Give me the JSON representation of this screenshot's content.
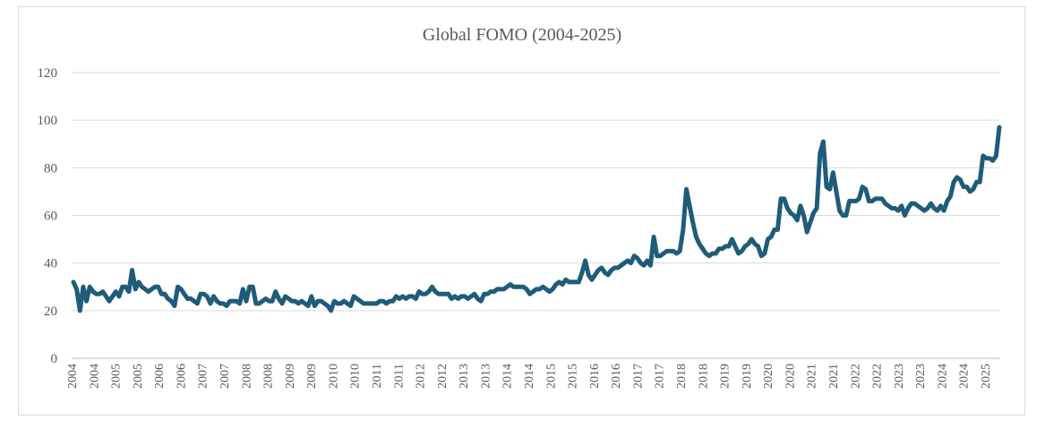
{
  "chart_data": {
    "type": "line",
    "title": "Global FOMO (2004-2025)",
    "xlabel": "",
    "ylabel": "",
    "ylim": [
      0,
      120
    ],
    "yticks": [
      "0",
      "20",
      "40",
      "60",
      "80",
      "100",
      "120"
    ],
    "xtick_labels": [
      "2004",
      "2004",
      "2005",
      "2005",
      "2006",
      "2006",
      "2007",
      "2007",
      "2008",
      "2008",
      "2009",
      "2009",
      "2010",
      "2010",
      "2011",
      "2011",
      "2012",
      "2012",
      "2013",
      "2013",
      "2014",
      "2014",
      "2015",
      "2015",
      "2016",
      "2016",
      "2017",
      "2017",
      "2018",
      "2018",
      "2019",
      "2019",
      "2020",
      "2020",
      "2021",
      "2021",
      "2022",
      "2022",
      "2023",
      "2023",
      "2024",
      "2024",
      "2025"
    ],
    "x_start": "2004-01",
    "grid": true,
    "legend": "none",
    "line_color": "#1f5c7a",
    "series": [
      {
        "values": [
          32,
          29,
          20,
          30,
          24,
          30,
          28,
          27,
          27,
          28,
          26,
          24,
          26,
          28,
          26,
          30,
          30,
          28,
          37,
          29,
          32,
          30,
          29,
          28,
          29,
          30,
          30,
          27,
          27,
          25,
          24,
          22,
          30,
          29,
          27,
          25,
          25,
          24,
          23,
          27,
          27,
          26,
          23,
          26,
          24,
          23,
          23,
          22,
          24,
          24,
          24,
          23,
          29,
          24,
          30,
          30,
          23,
          23,
          24,
          25,
          24,
          24,
          28,
          25,
          23,
          26,
          25,
          24,
          24,
          23,
          24,
          23,
          22,
          26,
          22,
          24,
          24,
          23,
          22,
          20,
          24,
          23,
          23,
          24,
          23,
          22,
          26,
          25,
          24,
          23,
          23,
          23,
          23,
          23,
          24,
          24,
          23,
          24,
          24,
          26,
          25,
          26,
          25,
          26,
          26,
          25,
          28,
          27,
          27,
          28,
          30,
          28,
          27,
          27,
          27,
          27,
          25,
          26,
          25,
          26,
          26,
          25,
          26,
          27,
          25,
          24,
          27,
          27,
          28,
          28,
          29,
          29,
          29,
          30,
          31,
          30,
          30,
          30,
          30,
          29,
          27,
          28,
          29,
          29,
          30,
          29,
          28,
          29,
          31,
          32,
          31,
          33,
          32,
          32,
          32,
          32,
          36,
          41,
          35,
          33,
          35,
          37,
          38,
          36,
          35,
          37,
          38,
          38,
          39,
          40,
          41,
          40,
          43,
          42,
          40,
          39,
          41,
          39,
          51,
          43,
          43,
          44,
          45,
          45,
          45,
          44,
          45,
          54,
          71,
          64,
          57,
          51,
          48,
          46,
          44,
          43,
          44,
          44,
          46,
          46,
          47,
          47,
          50,
          47,
          44,
          45,
          47,
          48,
          50,
          48,
          47,
          43,
          44,
          50,
          51,
          54,
          54,
          67,
          67,
          63,
          61,
          60,
          58,
          64,
          60,
          53,
          57,
          61,
          63,
          86,
          91,
          72,
          71,
          78,
          70,
          62,
          60,
          60,
          66,
          66,
          66,
          67,
          72,
          71,
          66,
          66,
          67,
          67,
          67,
          65,
          64,
          63,
          63,
          62,
          64,
          60,
          63,
          65,
          65,
          64,
          63,
          62,
          63,
          65,
          63,
          62,
          64,
          62,
          66,
          68,
          74,
          76,
          75,
          72,
          72,
          70,
          71,
          74,
          74,
          85,
          84,
          84,
          83,
          85,
          97
        ]
      }
    ]
  }
}
